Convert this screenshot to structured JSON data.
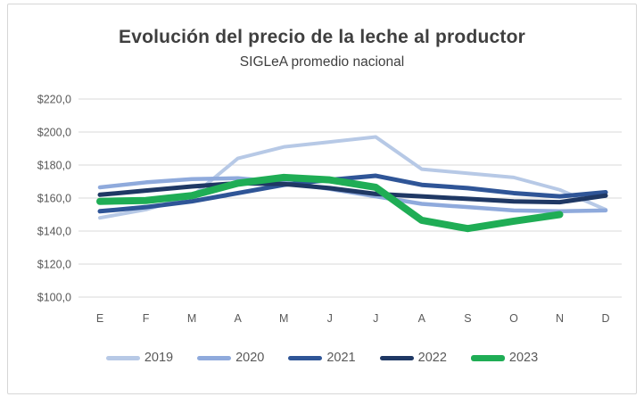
{
  "chart_data": {
    "type": "line",
    "title": "Evolución del precio de la leche al productor",
    "subtitle": "SIGLeA promedio nacional",
    "categories": [
      "E",
      "F",
      "M",
      "A",
      "M",
      "J",
      "J",
      "A",
      "S",
      "O",
      "N",
      "D"
    ],
    "y_tick_labels": [
      "$220,0",
      "$200,0",
      "$180,0",
      "$160,0",
      "$140,0",
      "$120,0",
      "$100,0"
    ],
    "y_tick_values": [
      220,
      200,
      180,
      160,
      140,
      120,
      100
    ],
    "ylim": [
      100,
      220
    ],
    "y_step": 20,
    "grid": true,
    "gridline_color": "#d9d9d9",
    "axis_text_color": "#595959",
    "title_color": "#3f3f3f",
    "legend_position": "bottom",
    "series": [
      {
        "name": "2019",
        "color": "#b7c9e6",
        "width": 4,
        "values": [
          148,
          153,
          161,
          184,
          191,
          194,
          197,
          177.5,
          175,
          172.5,
          165,
          153
        ]
      },
      {
        "name": "2020",
        "color": "#8faadc",
        "width": 4.5,
        "values": [
          166.5,
          169.5,
          171.5,
          172,
          169.5,
          165.5,
          161,
          156.5,
          154.5,
          152.5,
          152,
          152.5
        ]
      },
      {
        "name": "2021",
        "color": "#2f5597",
        "width": 5,
        "values": [
          152,
          154.5,
          158,
          163,
          168,
          171,
          173.5,
          168,
          166,
          163,
          161,
          163.5
        ]
      },
      {
        "name": "2022",
        "color": "#1f3864",
        "width": 5,
        "values": [
          162,
          164.5,
          167,
          169,
          168.5,
          166,
          162.5,
          161,
          159.5,
          158,
          157.5,
          161.5
        ]
      },
      {
        "name": "2023",
        "color": "#1fad55",
        "width": 8,
        "values": [
          158,
          158.5,
          161.5,
          169,
          172.5,
          171,
          166.5,
          146.5,
          141.5,
          146,
          150,
          null
        ]
      }
    ]
  }
}
